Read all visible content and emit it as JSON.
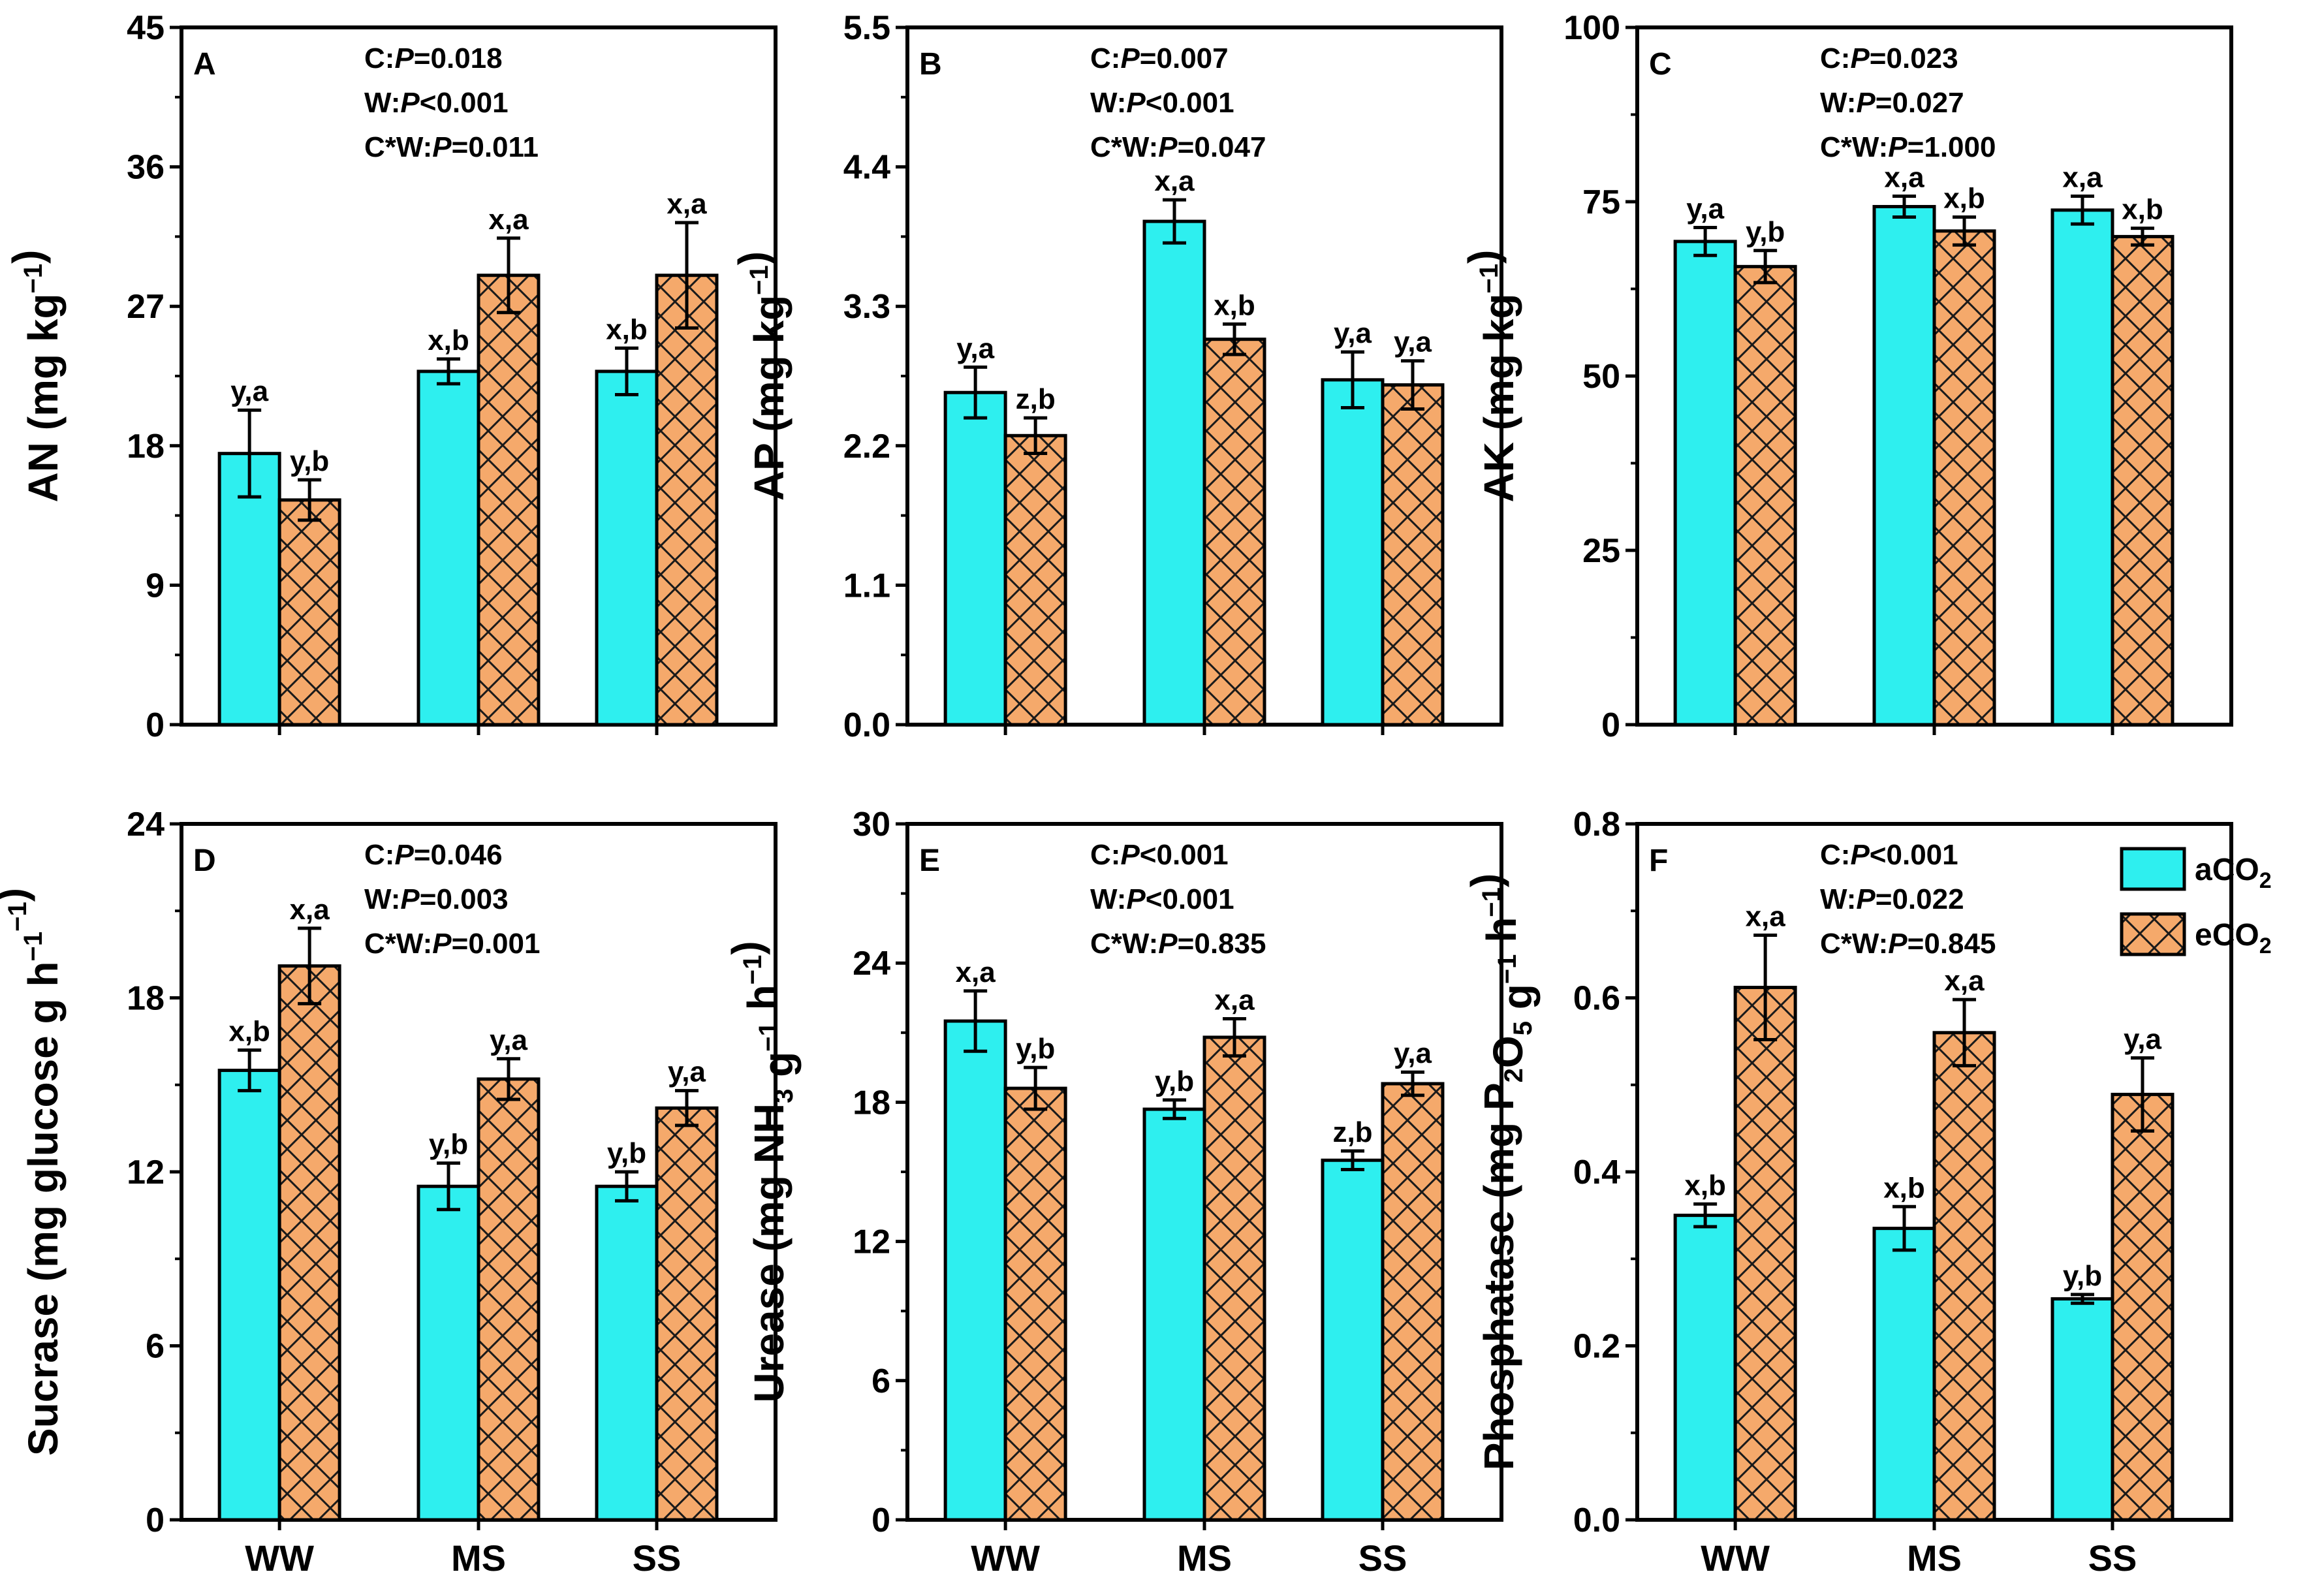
{
  "colors": {
    "aCO2": "#2EEFEF",
    "eCO2": "#F5A96B",
    "hatch": "#1a1a1a",
    "axis": "#000000"
  },
  "legend": {
    "items": [
      {
        "prefix": "aCO",
        "sub": "2",
        "color": "#2EEFEF",
        "hatched": false
      },
      {
        "prefix": "eCO",
        "sub": "2",
        "color": "#F5A96B",
        "hatched": true
      }
    ]
  },
  "chart_data": [
    {
      "type": "bar",
      "panel": "A",
      "ylabel_prefix": "AN (mg kg",
      "ylabel_sup": "−1",
      "ylabel_suffix": ")",
      "ylim": [
        0,
        45
      ],
      "yticks": [
        "0",
        "9",
        "18",
        "27",
        "36",
        "45"
      ],
      "categories": [
        "WW",
        "MS",
        "SS"
      ],
      "stats": [
        "C:|P|=0.018",
        "W:|P|<0.001",
        "C*W:|P|=0.011"
      ],
      "series": [
        {
          "name": "aCO2",
          "values": [
            17.5,
            22.8,
            22.8
          ],
          "errors": [
            2.8,
            0.8,
            1.5
          ],
          "labels": [
            "y,a",
            "x,b",
            "x,b"
          ]
        },
        {
          "name": "eCO2",
          "values": [
            14.5,
            29.0,
            29.0
          ],
          "errors": [
            1.3,
            2.4,
            3.4
          ],
          "labels": [
            "y,b",
            "x,a",
            "x,a"
          ]
        }
      ]
    },
    {
      "type": "bar",
      "panel": "B",
      "ylabel_prefix": "AP (mg kg",
      "ylabel_sup": "−1",
      "ylabel_suffix": ")",
      "ylim": [
        0,
        5.5
      ],
      "yticks": [
        "0.0",
        "1.1",
        "2.2",
        "3.3",
        "4.4",
        "5.5"
      ],
      "categories": [
        "WW",
        "MS",
        "SS"
      ],
      "stats": [
        "C:|P|=0.007",
        "W:|P|<0.001",
        "C*W:|P|=0.047"
      ],
      "series": [
        {
          "name": "aCO2",
          "values": [
            2.62,
            3.97,
            2.72
          ],
          "errors": [
            0.2,
            0.17,
            0.22
          ],
          "labels": [
            "y,a",
            "x,a",
            "y,a"
          ]
        },
        {
          "name": "eCO2",
          "values": [
            2.28,
            3.04,
            2.68
          ],
          "errors": [
            0.14,
            0.12,
            0.19
          ],
          "labels": [
            "z,b",
            "x,b",
            "y,a"
          ]
        }
      ]
    },
    {
      "type": "bar",
      "panel": "C",
      "ylabel_prefix": "AK (mg kg",
      "ylabel_sup": "−1",
      "ylabel_suffix": ")",
      "ylim": [
        0,
        100
      ],
      "yticks": [
        "0",
        "25",
        "50",
        "75",
        "100"
      ],
      "categories": [
        "WW",
        "MS",
        "SS"
      ],
      "stats": [
        "C:|P|=0.023",
        "W:|P|=0.027",
        "C*W:|P|=1.000"
      ],
      "series": [
        {
          "name": "aCO2",
          "values": [
            69.3,
            74.3,
            73.8
          ],
          "errors": [
            2.0,
            1.5,
            2.0
          ],
          "labels": [
            "y,a",
            "x,a",
            "x,a"
          ]
        },
        {
          "name": "eCO2",
          "values": [
            65.7,
            70.8,
            70.0
          ],
          "errors": [
            2.3,
            2.0,
            1.2
          ],
          "labels": [
            "y,b",
            "x,b",
            "x,b"
          ]
        }
      ]
    },
    {
      "type": "bar",
      "panel": "D",
      "ylabel_prefix": "Sucrase (mg glucose g",
      "ylabel_sup": "−1",
      "ylabel_mid": " h",
      "ylabel_sup2": "−1",
      "ylabel_suffix": ")",
      "ylim": [
        0,
        24
      ],
      "yticks": [
        "0",
        "6",
        "12",
        "18",
        "24"
      ],
      "categories": [
        "WW",
        "MS",
        "SS"
      ],
      "stats": [
        "C:|P|=0.046",
        "W:|P|=0.003",
        "C*W:|P|=0.001"
      ],
      "series": [
        {
          "name": "aCO2",
          "values": [
            15.5,
            11.5,
            11.5
          ],
          "errors": [
            0.7,
            0.8,
            0.5
          ],
          "labels": [
            "x,b",
            "y,b",
            "y,b"
          ]
        },
        {
          "name": "eCO2",
          "values": [
            19.1,
            15.2,
            14.2
          ],
          "errors": [
            1.3,
            0.7,
            0.6
          ],
          "labels": [
            "x,a",
            "y,a",
            "y,a"
          ]
        }
      ]
    },
    {
      "type": "bar",
      "panel": "E",
      "ylabel_prefix": "Urease (mg NH",
      "ylabel_sub": "3",
      "ylabel_mid": " g",
      "ylabel_sup": "−1",
      "ylabel_mid2": " h",
      "ylabel_sup2": "−1",
      "ylabel_suffix": ")",
      "ylim": [
        0,
        30
      ],
      "yticks": [
        "0",
        "6",
        "12",
        "18",
        "24",
        "30"
      ],
      "categories": [
        "WW",
        "MS",
        "SS"
      ],
      "stats": [
        "C:|P|<0.001",
        "W:|P|<0.001",
        "C*W:|P|=0.835"
      ],
      "series": [
        {
          "name": "aCO2",
          "values": [
            21.5,
            17.7,
            15.5
          ],
          "errors": [
            1.3,
            0.4,
            0.4
          ],
          "labels": [
            "x,a",
            "y,b",
            "z,b"
          ]
        },
        {
          "name": "eCO2",
          "values": [
            18.6,
            20.8,
            18.8
          ],
          "errors": [
            0.9,
            0.8,
            0.5
          ],
          "labels": [
            "y,b",
            "x,a",
            "y,a"
          ]
        }
      ]
    },
    {
      "type": "bar",
      "panel": "F",
      "ylabel_prefix": "Phosphatase (mg P",
      "ylabel_sub": "2",
      "ylabel_mid": "O",
      "ylabel_sub2": "5",
      "ylabel_mid2": " g",
      "ylabel_sup": "−1",
      "ylabel_mid3": " h",
      "ylabel_sup2": "−1",
      "ylabel_suffix": ")",
      "ylim": [
        0,
        0.8
      ],
      "yticks": [
        "0.0",
        "0.2",
        "0.4",
        "0.6",
        "0.8"
      ],
      "categories": [
        "WW",
        "MS",
        "SS"
      ],
      "stats": [
        "C:|P|<0.001",
        "W:|P|=0.022",
        "C*W:|P|=0.845"
      ],
      "series": [
        {
          "name": "aCO2",
          "values": [
            0.35,
            0.335,
            0.254
          ],
          "errors": [
            0.013,
            0.025,
            0.005
          ],
          "labels": [
            "x,b",
            "x,b",
            "y,b"
          ]
        },
        {
          "name": "eCO2",
          "values": [
            0.612,
            0.56,
            0.489
          ],
          "errors": [
            0.06,
            0.038,
            0.042
          ],
          "labels": [
            "x,a",
            "x,a",
            "y,a"
          ]
        }
      ]
    }
  ]
}
